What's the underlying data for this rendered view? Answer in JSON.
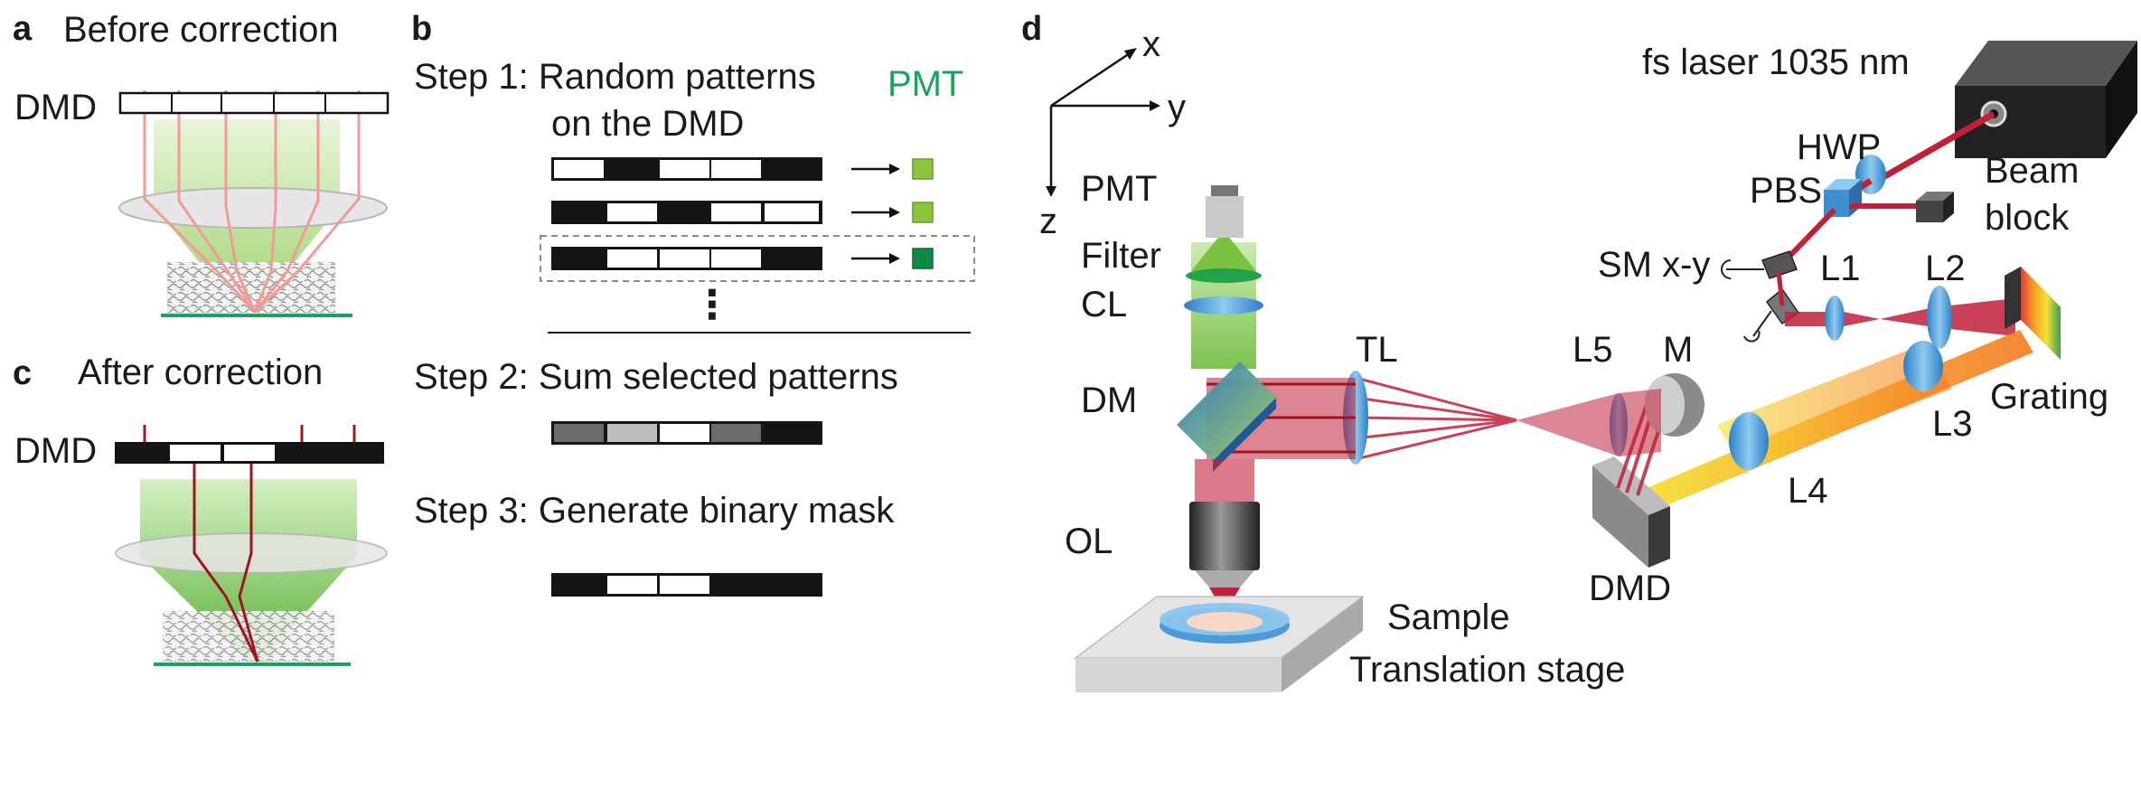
{
  "panel_a": {
    "letter": "a",
    "title": "Before correction",
    "dmd_label": "DMD"
  },
  "panel_c": {
    "letter": "c",
    "title": "After correction",
    "dmd_label": "DMD"
  },
  "panel_b": {
    "letter": "b",
    "step1_line1": "Step 1: Random patterns",
    "step1_line2": "on the DMD",
    "pmt_label": "PMT",
    "ellipsis": "⋮",
    "step2": "Step 2: Sum selected patterns",
    "step3": "Step 3: Generate binary mask"
  },
  "panel_d": {
    "letter": "d",
    "axes": {
      "x": "x",
      "y": "y",
      "z": "z"
    },
    "labels": {
      "laser": "fs laser 1035 nm",
      "hwp": "HWP",
      "pbs": "PBS",
      "beam_block_1": "Beam",
      "beam_block_2": "block",
      "sm": "SM x-y",
      "l1": "L1",
      "l2": "L2",
      "grating": "Grating",
      "l3": "L3",
      "l4": "L4",
      "l5": "L5",
      "m": "M",
      "dmd": "DMD",
      "tl": "TL",
      "pmt": "PMT",
      "filter": "Filter",
      "cl": "CL",
      "dm": "DM",
      "ol": "OL",
      "sample": "Sample",
      "stage": "Translation stage"
    }
  },
  "colors": {
    "red_beam": "#c0203a",
    "pink_beam": "#f29a96",
    "green_signal": "#7cc242",
    "lens_blue": "#5aa6dc",
    "pmt_green": "#1aa35a"
  }
}
